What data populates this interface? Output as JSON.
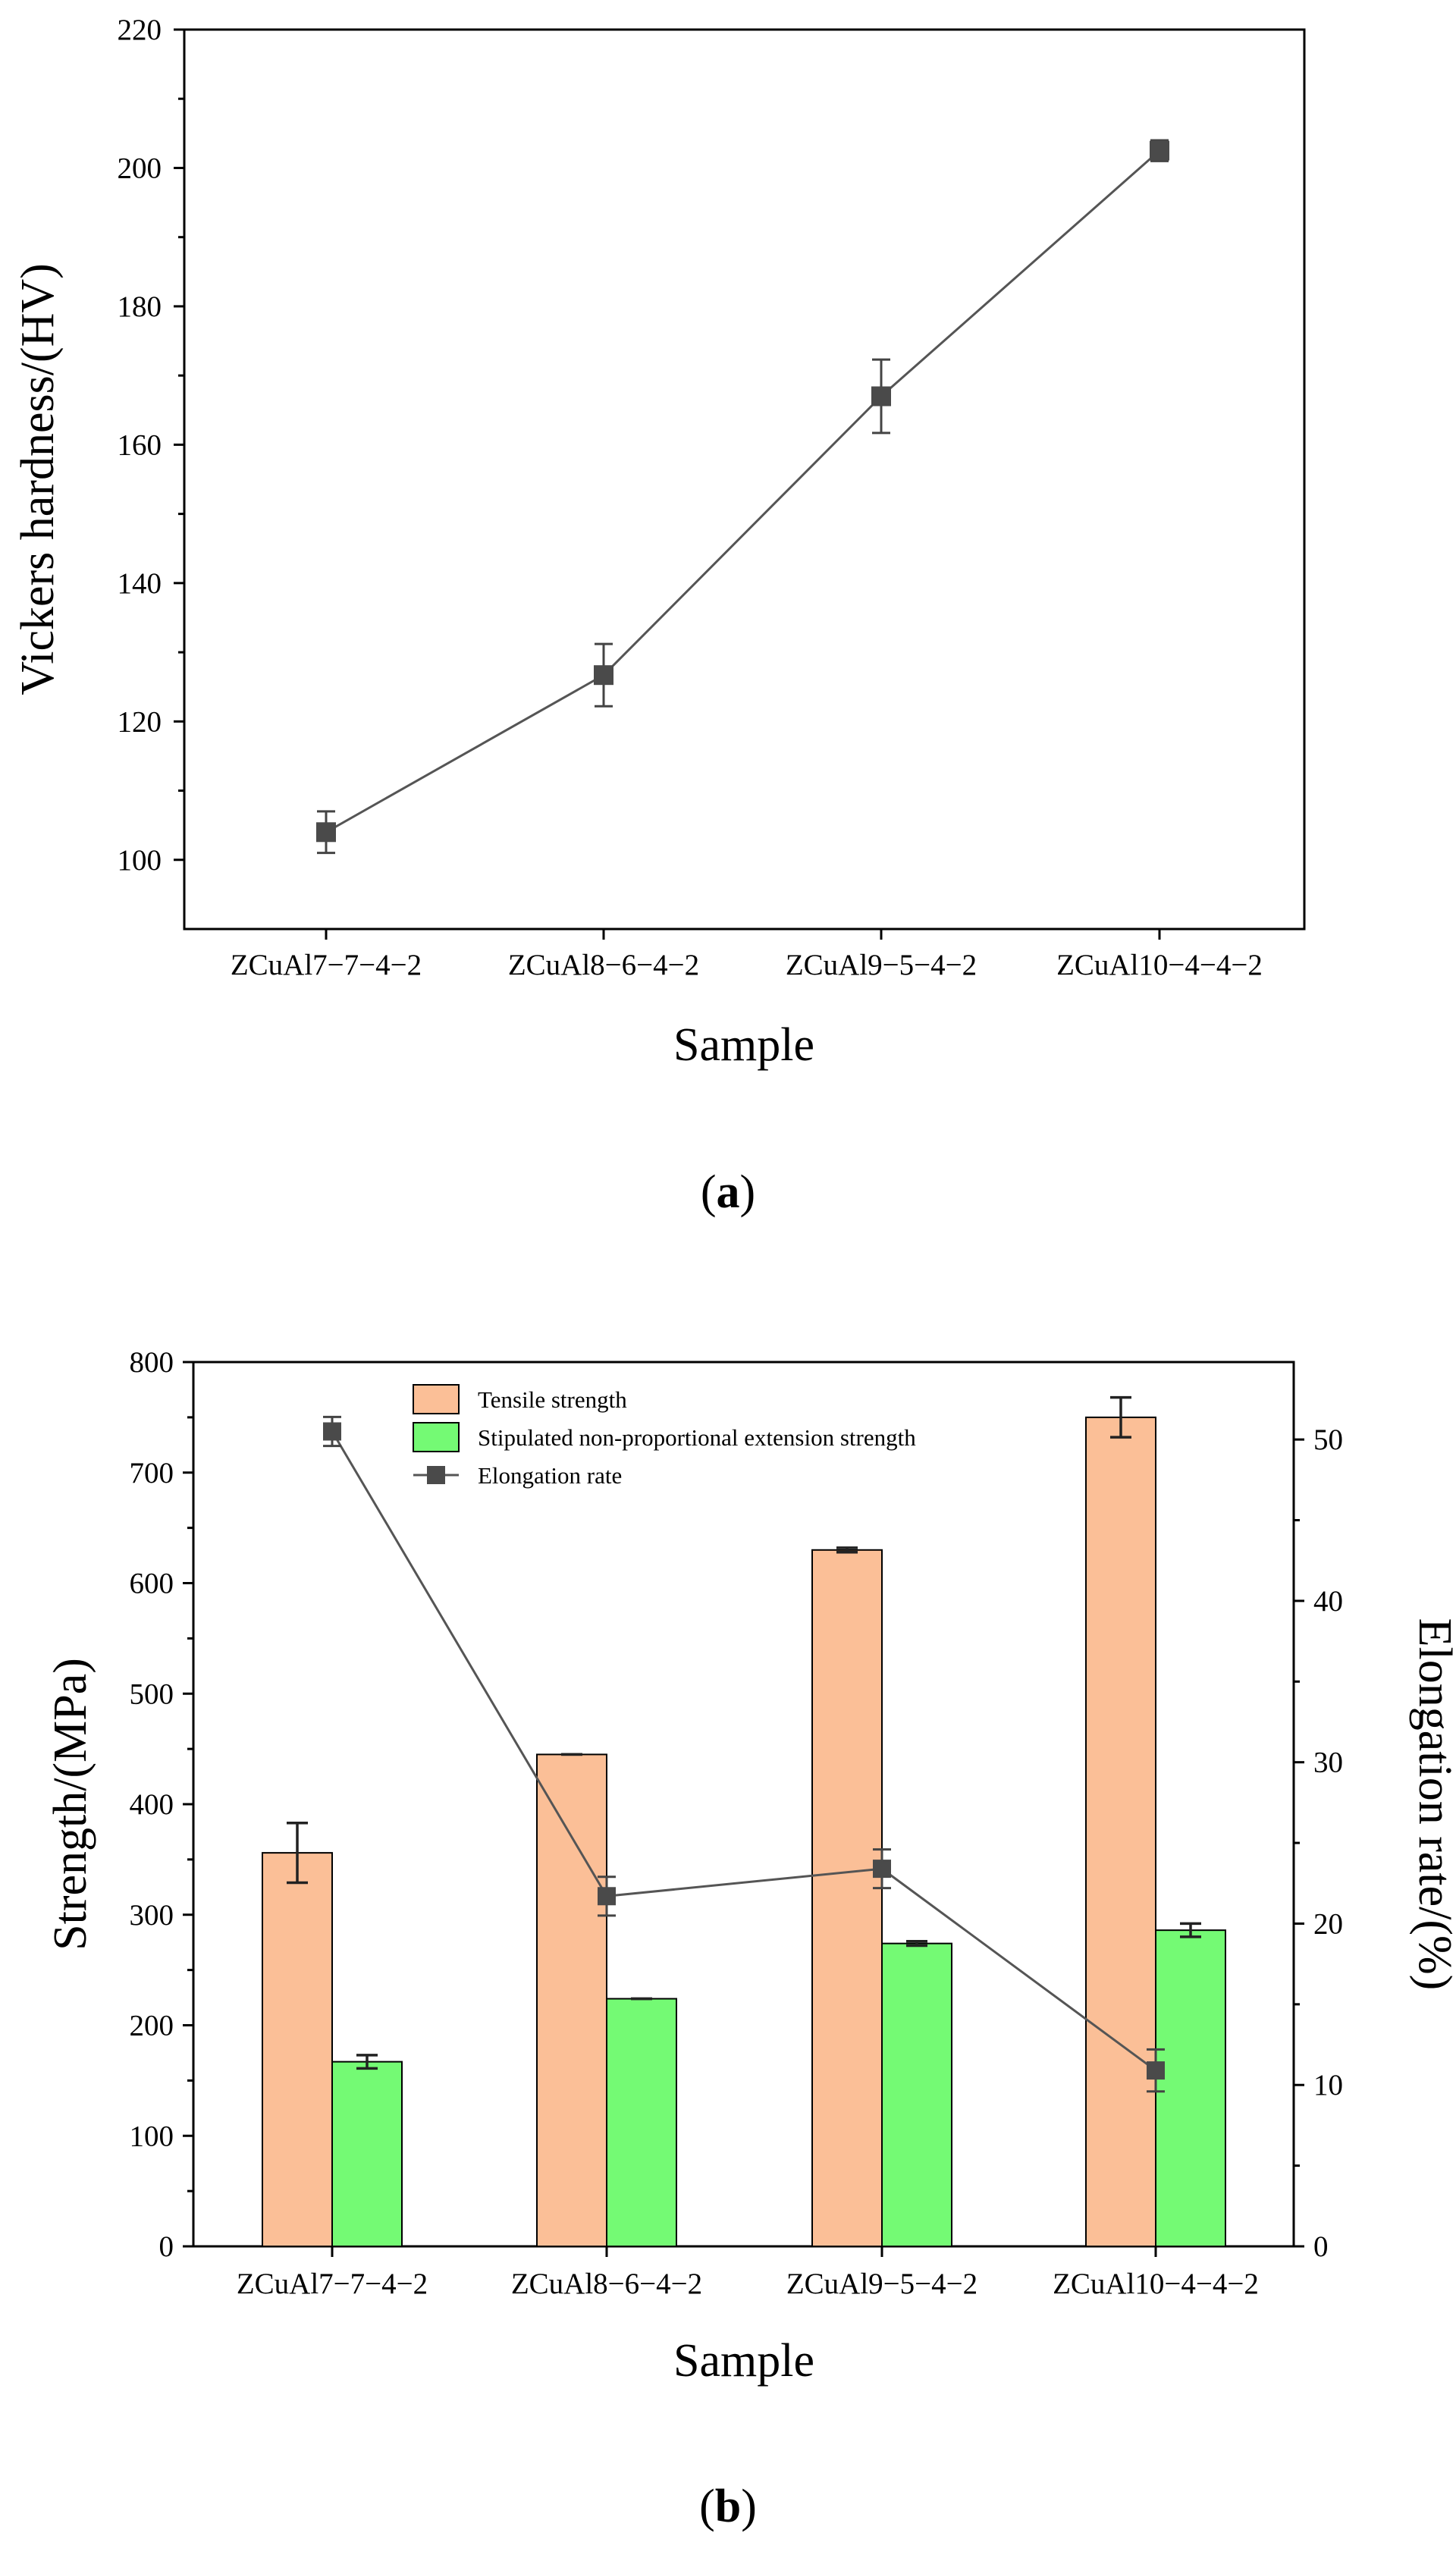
{
  "chart_data": [
    {
      "type": "line",
      "panel_label": "a",
      "title": "",
      "xlabel": "Sample",
      "ylabel": "Vickers hardness/(HV)",
      "categories": [
        "ZCuAl7−7−4−2",
        "ZCuAl8−6−4−2",
        "ZCuAl9−5−4−2",
        "ZCuAl10−4−4−2"
      ],
      "series": [
        {
          "name": "Vickers hardness",
          "values": [
            104,
            126.7,
            167,
            202.5
          ],
          "errors": [
            3,
            4.5,
            5.3,
            1.5
          ]
        }
      ],
      "ylim": [
        90,
        220
      ],
      "yticks": [
        100,
        120,
        140,
        160,
        180,
        200,
        220
      ],
      "colors": {
        "line": "#555555",
        "marker": "#4a4a4a"
      }
    },
    {
      "type": "bar",
      "panel_label": "b",
      "title": "",
      "xlabel": "Sample",
      "ylabel": "Strength/(MPa)",
      "y2label": "Elongation rate/(%)",
      "categories": [
        "ZCuAl7−7−4−2",
        "ZCuAl8−6−4−2",
        "ZCuAl9−5−4−2",
        "ZCuAl10−4−4−2"
      ],
      "series": [
        {
          "name": "Tensile strength",
          "values": [
            356,
            445,
            630,
            750
          ],
          "errors": [
            27,
            0,
            2,
            18
          ],
          "color": "#fbbf97"
        },
        {
          "name": "Stipulated non-proportional extension strength",
          "values": [
            167,
            224,
            274,
            286
          ],
          "errors": [
            6,
            0,
            2,
            6
          ],
          "color": "#74fa74"
        }
      ],
      "series_secondary": [
        {
          "name": "Elongation rate",
          "values": [
            50.5,
            21.7,
            23.4,
            10.9
          ],
          "errors": [
            0.9,
            1.2,
            1.2,
            1.3
          ],
          "axis": "right",
          "color": "#4a4a4a"
        }
      ],
      "ylim": [
        0,
        800
      ],
      "yticks": [
        0,
        100,
        200,
        300,
        400,
        500,
        600,
        700,
        800
      ],
      "y2lim": [
        0,
        54.8
      ],
      "y2ticks": [
        0,
        10,
        20,
        30,
        40,
        50
      ],
      "legend_position": "top-center"
    }
  ]
}
